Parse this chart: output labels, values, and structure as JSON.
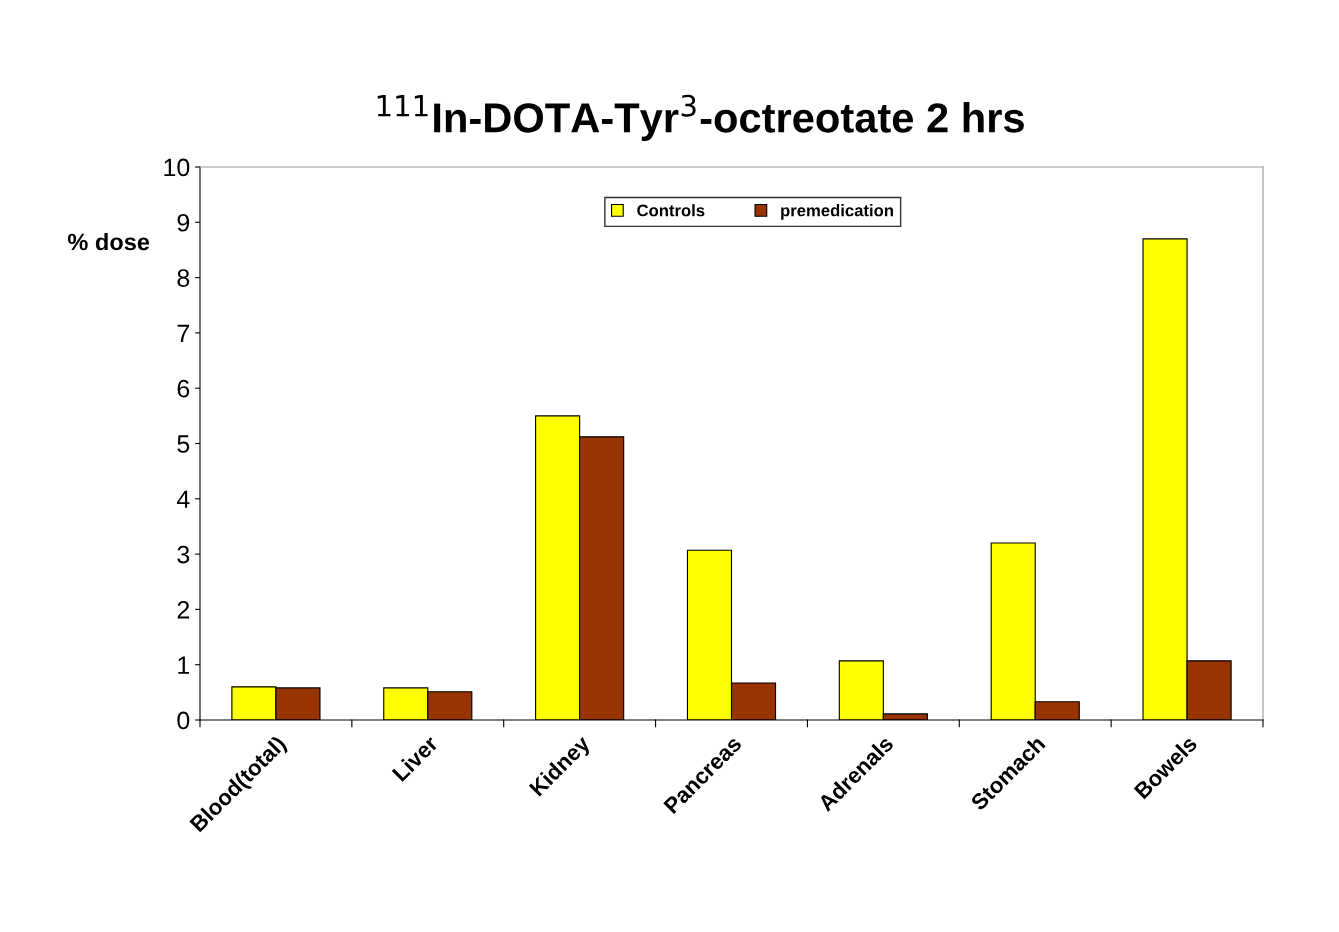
{
  "chart_data": {
    "type": "bar",
    "title": "$^{111}$In-DOTA-Tyr$^{3}$-octreotate 2 hrs",
    "ylabel": "% dose",
    "categories": [
      "Blood(total)",
      "Liver",
      "Kidney",
      "Pancreas",
      "Adrenals",
      "Stomach",
      "Bowels"
    ],
    "series": [
      {
        "name": "Controls",
        "color": "#ffff00",
        "values": [
          0.6,
          0.58,
          5.5,
          3.07,
          1.07,
          3.2,
          8.7
        ]
      },
      {
        "name": "premedication",
        "color": "#993300",
        "values": [
          0.58,
          0.51,
          5.12,
          0.67,
          0.11,
          0.33,
          1.07
        ]
      }
    ],
    "ylim": [
      0,
      10
    ],
    "yticks": [
      0,
      1,
      2,
      3,
      4,
      5,
      6,
      7,
      8,
      9,
      10
    ],
    "grid": false,
    "legend": "top"
  }
}
